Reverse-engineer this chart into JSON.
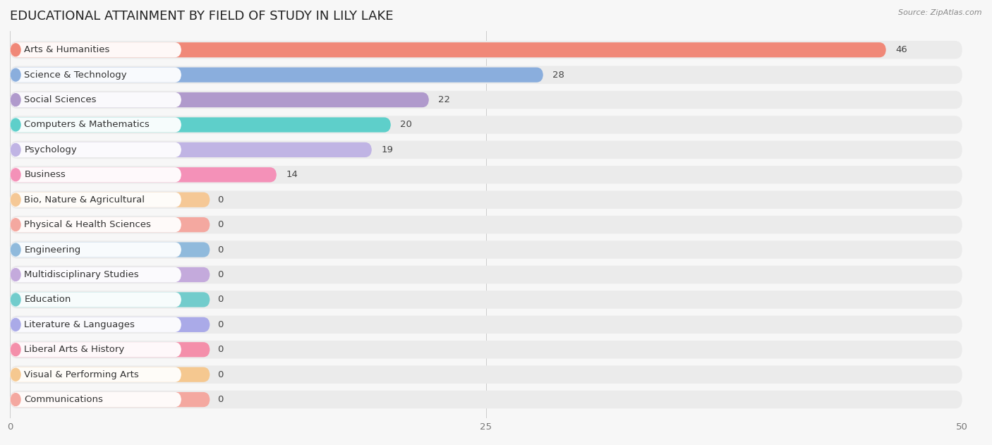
{
  "title": "EDUCATIONAL ATTAINMENT BY FIELD OF STUDY IN LILY LAKE",
  "source": "Source: ZipAtlas.com",
  "categories": [
    "Arts & Humanities",
    "Science & Technology",
    "Social Sciences",
    "Computers & Mathematics",
    "Psychology",
    "Business",
    "Bio, Nature & Agricultural",
    "Physical & Health Sciences",
    "Engineering",
    "Multidisciplinary Studies",
    "Education",
    "Literature & Languages",
    "Liberal Arts & History",
    "Visual & Performing Arts",
    "Communications"
  ],
  "values": [
    46,
    28,
    22,
    20,
    19,
    14,
    0,
    0,
    0,
    0,
    0,
    0,
    0,
    0,
    0
  ],
  "colors": [
    "#F08878",
    "#8AAEDD",
    "#B09ACC",
    "#5ECFCA",
    "#C0B4E4",
    "#F491B8",
    "#F5C896",
    "#F4A8A0",
    "#90BADC",
    "#C4AADC",
    "#72CCCC",
    "#AAAAE8",
    "#F48FAA",
    "#F5C890",
    "#F4A8A0"
  ],
  "xlim": [
    0,
    50
  ],
  "xticks": [
    0,
    25,
    50
  ],
  "background_color": "#f7f7f7",
  "bar_background_color": "#ebebeb",
  "title_fontsize": 13,
  "label_fontsize": 9.5,
  "value_fontsize": 9.5
}
